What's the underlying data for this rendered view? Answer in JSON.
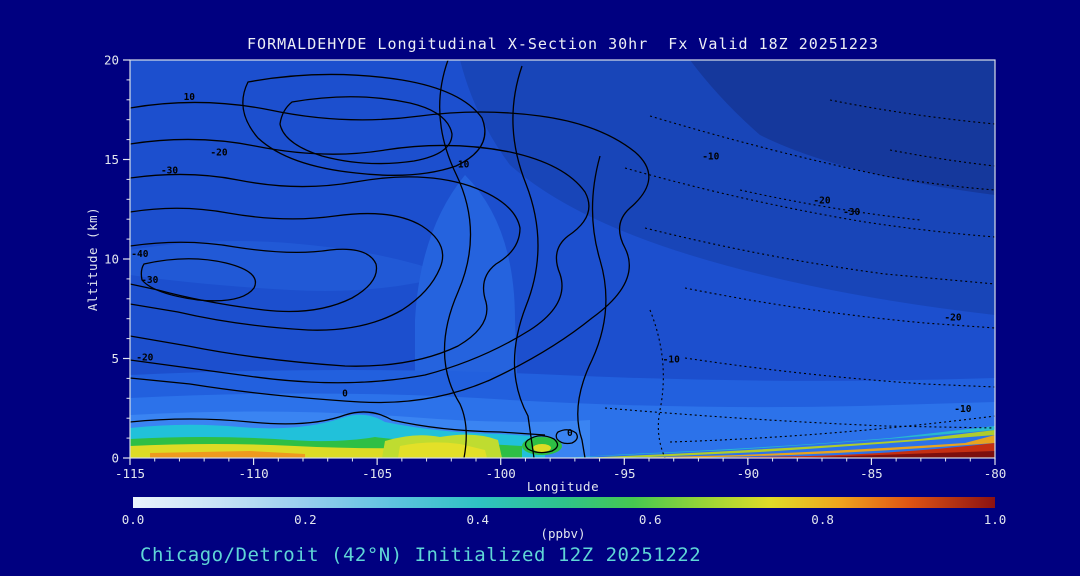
{
  "window": {
    "background": "#000080"
  },
  "title": "FORMALDEHYDE Longitudinal X-Section 30hr  Fx Valid 18Z 20251223",
  "caption": "Chicago/Detroit (42°N) Initialized 12Z 20251222",
  "chart_data": {
    "type": "filled_contour_cross_section",
    "title": "FORMALDEHYDE Longitudinal X-Section 30hr  Fx Valid 18Z 20251223",
    "xlabel": "Longitude",
    "ylabel": "Altitude (km)",
    "x_range": [
      -115,
      -80
    ],
    "x_ticks": [
      -115,
      -110,
      -105,
      -100,
      -95,
      -90,
      -85,
      -80
    ],
    "x_minor_step": 1,
    "y_range": [
      0,
      20
    ],
    "y_ticks": [
      0,
      5,
      10,
      15,
      20
    ],
    "y_minor_step": 1,
    "grid": false,
    "colorbar": {
      "label": "(ppbv)",
      "range": [
        0.0,
        1.0
      ],
      "ticks": [
        "0.0",
        "0.2",
        "0.4",
        "0.6",
        "0.8",
        "1.0"
      ],
      "stops": [
        {
          "pos": 0.0,
          "color": "#EAF3FC"
        },
        {
          "pos": 0.1,
          "color": "#C6E2F6"
        },
        {
          "pos": 0.2,
          "color": "#97CDEE"
        },
        {
          "pos": 0.3,
          "color": "#5FC3E0"
        },
        {
          "pos": 0.4,
          "color": "#2FC3C3"
        },
        {
          "pos": 0.5,
          "color": "#2FC38A"
        },
        {
          "pos": 0.58,
          "color": "#46C850"
        },
        {
          "pos": 0.66,
          "color": "#96D437"
        },
        {
          "pos": 0.74,
          "color": "#E0DC28"
        },
        {
          "pos": 0.82,
          "color": "#F0A41E"
        },
        {
          "pos": 0.9,
          "color": "#E05514"
        },
        {
          "pos": 1.0,
          "color": "#8C1212"
        }
      ]
    },
    "overlay_contours": {
      "style": "black contour lines, solid over western half, dotted over eastern half",
      "labels": [
        {
          "value": "10",
          "lon": -112.6,
          "alt_km": 18.0
        },
        {
          "value": "-20",
          "lon": -111.4,
          "alt_km": 15.2
        },
        {
          "value": "-30",
          "lon": -113.4,
          "alt_km": 14.3
        },
        {
          "value": "-40",
          "lon": -114.6,
          "alt_km": 10.1
        },
        {
          "value": "-30",
          "lon": -114.2,
          "alt_km": 8.8
        },
        {
          "value": "-20",
          "lon": -114.4,
          "alt_km": 4.9
        },
        {
          "value": "10",
          "lon": -101.5,
          "alt_km": 14.6
        },
        {
          "value": "0",
          "lon": -106.3,
          "alt_km": 3.1
        },
        {
          "value": "0",
          "lon": -97.2,
          "alt_km": 1.1
        },
        {
          "value": "-10",
          "lon": -91.5,
          "alt_km": 15.0
        },
        {
          "value": "-20",
          "lon": -87.0,
          "alt_km": 12.8
        },
        {
          "value": "-30",
          "lon": -85.8,
          "alt_km": 12.2
        },
        {
          "value": "-20",
          "lon": -81.7,
          "alt_km": 6.9
        },
        {
          "value": "-10",
          "lon": -81.3,
          "alt_km": 2.3
        },
        {
          "value": "-10",
          "lon": -93.1,
          "alt_km": 4.8
        }
      ]
    },
    "shading_summary": [
      {
        "region": "free troposphere over most of domain",
        "approx_value_ppbv": "0.15-0.30",
        "color": "medium blue"
      },
      {
        "region": "upper troposphere east of -95",
        "approx_value_ppbv": "0.05-0.15",
        "color": "dark blue"
      },
      {
        "region": "boundary layer below ~2.5 km west of -100",
        "approx_value_ppbv": "0.35-0.75",
        "color": "cyan/green/yellow"
      },
      {
        "region": "near-surface layer east of -93 thickening toward -80",
        "approx_value_ppbv": "0.8-1.0",
        "color": "orange/red/dark red"
      }
    ]
  }
}
